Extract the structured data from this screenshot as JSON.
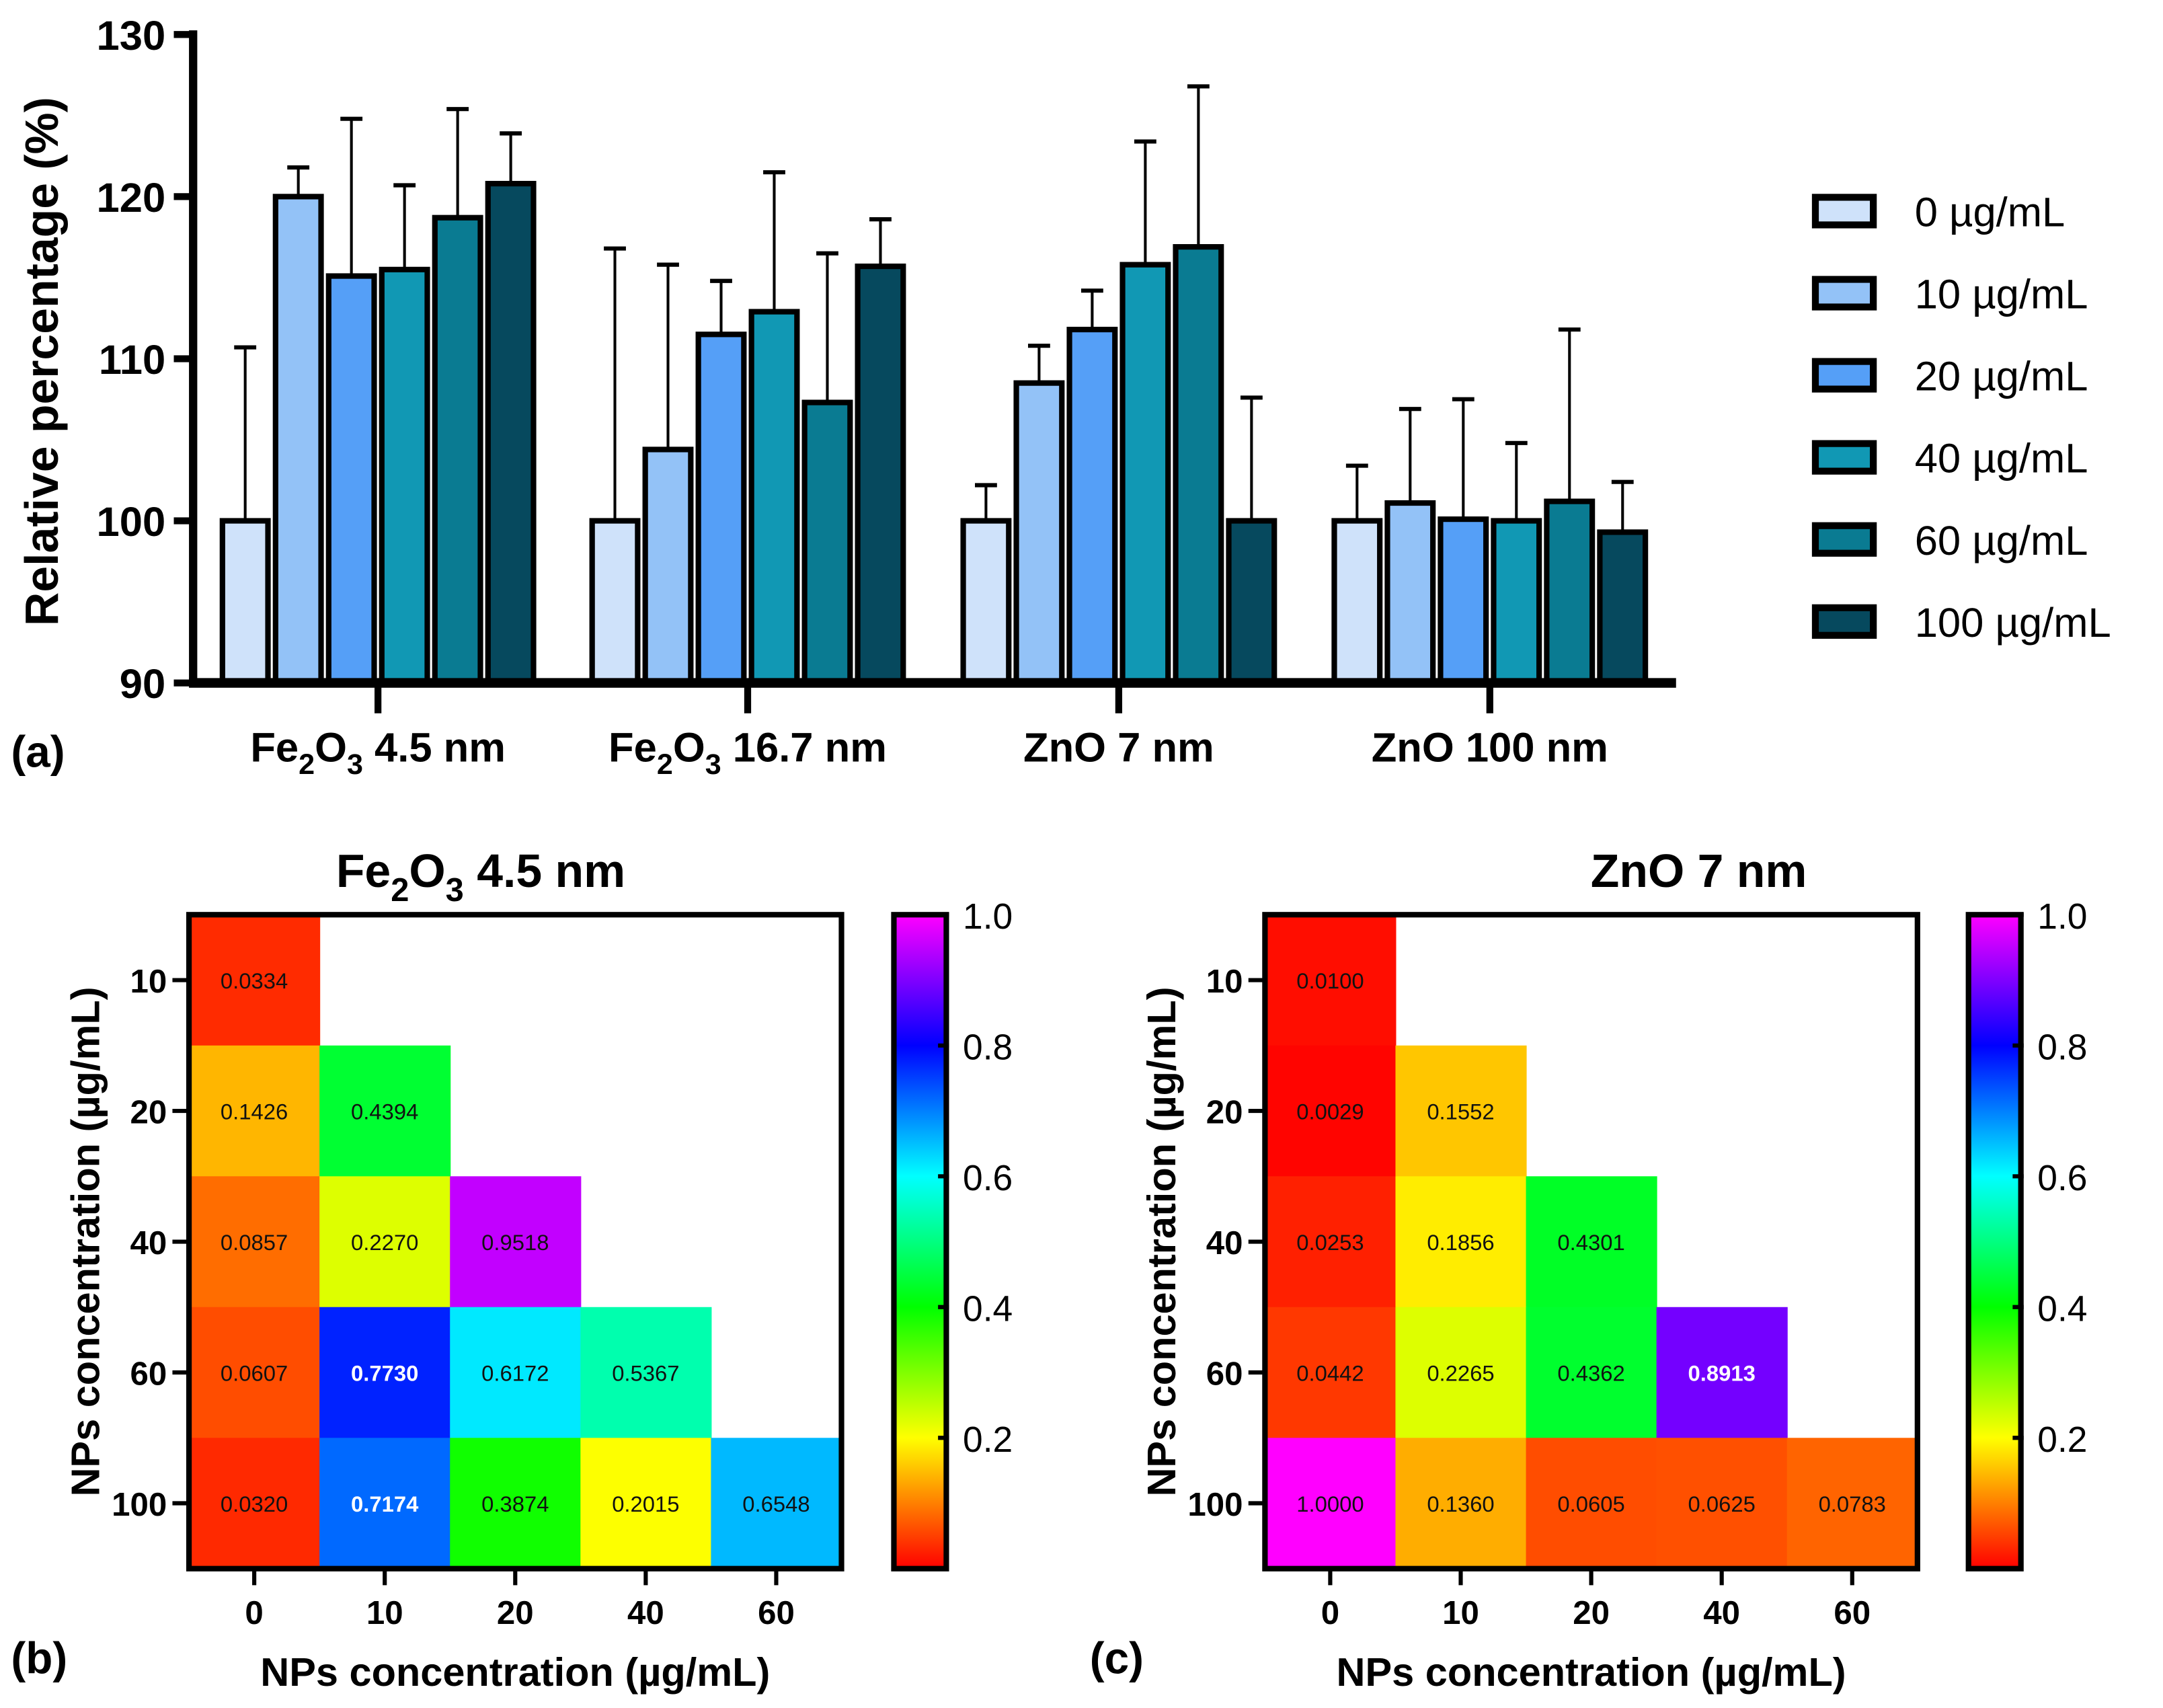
{
  "chart_data": [
    {
      "type": "bar",
      "panel_label": "(a)",
      "ylabel": "Relative percentage (%)",
      "ylim": [
        90,
        130
      ],
      "yticks": [
        "90",
        "100",
        "110",
        "120",
        "130"
      ],
      "categories": [
        "Fe2O3 4.5 nm",
        "Fe2O3 16.7 nm",
        "ZnO 7 nm",
        "ZnO 100 nm"
      ],
      "category_labels": [
        {
          "main": "Fe",
          "sub1": "2",
          "mid": "O",
          "sub2": "3",
          "rest": " 4.5 nm"
        },
        {
          "main": "Fe",
          "sub1": "2",
          "mid": "O",
          "sub2": "3",
          "rest": " 16.7 nm"
        },
        {
          "main": "ZnO 7 nm",
          "sub1": "",
          "mid": "",
          "sub2": "",
          "rest": ""
        },
        {
          "main": "ZnO 100 nm",
          "sub1": "",
          "mid": "",
          "sub2": "",
          "rest": ""
        }
      ],
      "legend_position": "right",
      "series": [
        {
          "name": "0 µg/mL",
          "color": "#cfe2fa",
          "values": [
            100,
            100,
            100,
            100
          ],
          "error_upper": [
            110.7,
            116.8,
            102.2,
            103.4
          ]
        },
        {
          "name": "10 µg/mL",
          "color": "#93c2f7",
          "values": [
            120.0,
            104.4,
            108.5,
            101.1
          ],
          "error_upper": [
            121.8,
            115.8,
            110.8,
            106.9
          ]
        },
        {
          "name": "20 µg/mL",
          "color": "#559ff7",
          "values": [
            115.1,
            111.5,
            111.8,
            100.1
          ],
          "error_upper": [
            124.8,
            114.8,
            114.2,
            107.5
          ]
        },
        {
          "name": "40 µg/mL",
          "color": "#1198b4",
          "values": [
            115.5,
            112.9,
            115.8,
            100.0
          ],
          "error_upper": [
            120.7,
            121.5,
            123.4,
            104.8
          ]
        },
        {
          "name": "60 µg/mL",
          "color": "#0a7b92",
          "values": [
            118.7,
            107.3,
            116.9,
            101.2
          ],
          "error_upper": [
            125.4,
            116.5,
            126.8,
            111.8
          ]
        },
        {
          "name": "100 µg/mL",
          "color": "#06495e",
          "values": [
            120.8,
            115.7,
            100.0,
            99.3
          ],
          "error_upper": [
            123.9,
            118.6,
            107.6,
            102.4
          ]
        }
      ]
    },
    {
      "type": "heatmap",
      "panel_label": "(b)",
      "title": {
        "main": "Fe",
        "sub1": "2",
        "mid": "O",
        "sub2": "3",
        "rest": " 4.5 nm"
      },
      "xlabel": "NPs concentration (µg/mL)",
      "ylabel": "NPs concentration (µg/mL)",
      "x": [
        "0",
        "10",
        "20",
        "40",
        "60"
      ],
      "y": [
        "10",
        "20",
        "40",
        "60",
        "100"
      ],
      "values": [
        [
          "0.0334",
          null,
          null,
          null,
          null
        ],
        [
          "0.1426",
          "0.4394",
          null,
          null,
          null
        ],
        [
          "0.0857",
          "0.2270",
          "0.9518",
          null,
          null
        ],
        [
          "0.0607",
          "0.7730",
          "0.6172",
          "0.5367",
          null
        ],
        [
          "0.0320",
          "0.7174",
          "0.3874",
          "0.2015",
          "0.6548"
        ]
      ],
      "colorbar_ticks": [
        "0.2",
        "0.4",
        "0.6",
        "0.8",
        "1.0"
      ],
      "colorbar_range": [
        0,
        1
      ]
    },
    {
      "type": "heatmap",
      "panel_label": "(c)",
      "title": {
        "main": "ZnO 7 nm",
        "sub1": "",
        "mid": "",
        "sub2": "",
        "rest": ""
      },
      "xlabel": "NPs concentration (µg/mL)",
      "ylabel": "NPs concentration (µg/mL)",
      "x": [
        "0",
        "10",
        "20",
        "40",
        "60"
      ],
      "y": [
        "10",
        "20",
        "40",
        "60",
        "100"
      ],
      "values": [
        [
          "0.0100",
          null,
          null,
          null,
          null
        ],
        [
          "0.0029",
          "0.1552",
          null,
          null,
          null
        ],
        [
          "0.0253",
          "0.1856",
          "0.4301",
          null,
          null
        ],
        [
          "0.0442",
          "0.2265",
          "0.4362",
          "0.8913",
          null
        ],
        [
          "1.0000",
          "0.1360",
          "0.0605",
          "0.0625",
          "0.0783"
        ]
      ],
      "colorbar_ticks": [
        "0.2",
        "0.4",
        "0.6",
        "0.8",
        "1.0"
      ],
      "colorbar_range": [
        0,
        1
      ]
    }
  ]
}
